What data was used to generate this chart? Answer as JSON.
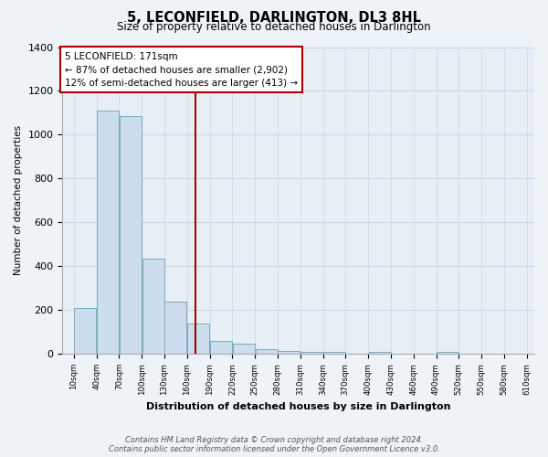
{
  "title": "5, LECONFIELD, DARLINGTON, DL3 8HL",
  "subtitle": "Size of property relative to detached houses in Darlington",
  "xlabel": "Distribution of detached houses by size in Darlington",
  "ylabel": "Number of detached properties",
  "bar_edges": [
    10,
    40,
    70,
    100,
    130,
    160,
    190,
    220,
    250,
    280,
    310,
    340,
    370,
    400,
    430,
    460,
    490,
    520,
    550,
    580,
    610
  ],
  "bar_heights": [
    210,
    1110,
    1085,
    435,
    240,
    140,
    60,
    45,
    22,
    12,
    10,
    10,
    0,
    10,
    0,
    0,
    10,
    0,
    0,
    0
  ],
  "bar_color": "#ccdded",
  "bar_edgecolor": "#7aaabb",
  "vline_x": 171,
  "vline_color": "#aa0000",
  "annotation_box_edgecolor": "#aa0000",
  "annotation_text_line1": "5 LECONFIELD: 171sqm",
  "annotation_text_line2": "← 87% of detached houses are smaller (2,902)",
  "annotation_text_line3": "12% of semi-detached houses are larger (413) →",
  "ylim": [
    0,
    1400
  ],
  "xlim_min": 10,
  "xlim_max": 620,
  "tick_labels": [
    "10sqm",
    "40sqm",
    "70sqm",
    "100sqm",
    "130sqm",
    "160sqm",
    "190sqm",
    "220sqm",
    "250sqm",
    "280sqm",
    "310sqm",
    "340sqm",
    "370sqm",
    "400sqm",
    "430sqm",
    "460sqm",
    "490sqm",
    "520sqm",
    "550sqm",
    "580sqm",
    "610sqm"
  ],
  "footnote1": "Contains HM Land Registry data © Crown copyright and database right 2024.",
  "footnote2": "Contains public sector information licensed under the Open Government Licence v3.0.",
  "background_color": "#eef3f8",
  "plot_bg_color": "#e8eef5",
  "grid_color": "#c8d8e8"
}
